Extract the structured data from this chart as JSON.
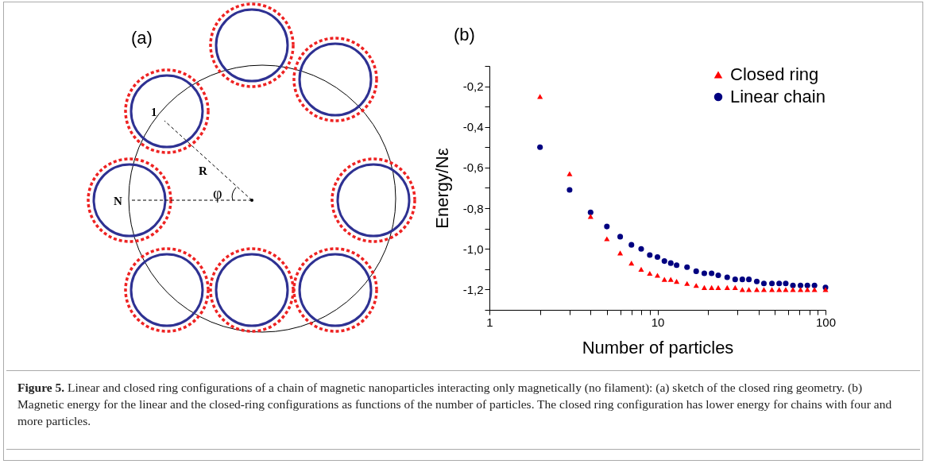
{
  "chart_data": [
    {
      "type": "other",
      "annotations": [
        "(a)",
        "1",
        "R",
        "N",
        "φ"
      ]
    },
    {
      "type": "scatter",
      "title": "(b)",
      "xlabel": "Number of particles",
      "ylabel": "Energy/Nε",
      "log": "x",
      "legend": "top right",
      "grid": false,
      "xlim": [
        1,
        100
      ],
      "xticks": [
        1,
        {
          "value": 2,
          "label": null
        },
        {
          "value": 3,
          "label": null
        },
        {
          "value": 4,
          "label": null
        },
        {
          "value": 5,
          "label": null
        },
        {
          "value": 6,
          "label": null
        },
        {
          "value": 7,
          "label": null
        },
        {
          "value": 8,
          "label": null
        },
        {
          "value": 9,
          "label": null
        },
        10,
        {
          "value": 20,
          "label": null
        },
        {
          "value": 30,
          "label": null
        },
        {
          "value": 40,
          "label": null
        },
        {
          "value": 50,
          "label": null
        },
        {
          "value": 60,
          "label": null
        },
        {
          "value": 70,
          "label": null
        },
        {
          "value": 80,
          "label": null
        },
        {
          "value": 90,
          "label": null
        },
        100
      ],
      "ylim": [
        -1.3,
        -0.1
      ],
      "yticks": [
        {
          "value": -1.3,
          "label": null
        },
        {
          "value": -1.2,
          "label": "-1,2"
        },
        {
          "value": -1.1,
          "label": null
        },
        {
          "value": -1.0,
          "label": "-1,0"
        },
        {
          "value": -0.9,
          "label": null
        },
        {
          "value": -0.8,
          "label": "-0,8"
        },
        {
          "value": -0.7,
          "label": null
        },
        {
          "value": -0.6,
          "label": "-0,6"
        },
        {
          "value": -0.5,
          "label": null
        },
        {
          "value": -0.4,
          "label": "-0,4"
        },
        {
          "value": -0.3,
          "label": null
        },
        {
          "value": -0.2,
          "label": "-0,2"
        },
        {
          "value": -0.1,
          "label": null
        }
      ],
      "x": [
        2,
        3,
        4,
        5,
        6,
        7,
        8,
        9,
        10,
        11,
        12,
        13,
        15,
        17,
        19,
        21,
        23,
        26,
        29,
        32,
        35,
        39,
        43,
        48,
        53,
        58,
        64,
        71,
        78,
        86,
        100
      ],
      "series": [
        {
          "name": "Closed ring",
          "color": "#ff0000",
          "marker": "triangle",
          "values": [
            -0.25,
            -0.63,
            -0.84,
            -0.95,
            -1.02,
            -1.07,
            -1.1,
            -1.12,
            -1.13,
            -1.15,
            -1.15,
            -1.16,
            -1.17,
            -1.18,
            -1.19,
            -1.19,
            -1.19,
            -1.19,
            -1.19,
            -1.2,
            -1.2,
            -1.2,
            -1.2,
            -1.2,
            -1.2,
            -1.2,
            -1.2,
            -1.2,
            -1.2,
            -1.2,
            -1.2
          ]
        },
        {
          "name": "Linear chain",
          "color": "#000080",
          "marker": "circle",
          "values": [
            -0.5,
            -0.71,
            -0.82,
            -0.89,
            -0.94,
            -0.98,
            -1.0,
            -1.03,
            -1.04,
            -1.06,
            -1.07,
            -1.08,
            -1.09,
            -1.11,
            -1.12,
            -1.12,
            -1.13,
            -1.14,
            -1.15,
            -1.15,
            -1.15,
            -1.16,
            -1.17,
            -1.17,
            -1.17,
            -1.17,
            -1.18,
            -1.18,
            -1.18,
            -1.18,
            -1.19
          ]
        }
      ],
      "annotations": [
        "Figure 5.",
        "Linear and closed ring configurations of a chain of magnetic nanoparticles interacting only magnetically (no filament): (a) sketch of the closed ring geometry. (b) Magnetic energy for the linear and the closed-ring configurations as functions of the number of particles. The closed ring configuration has lower energy for chains with four and more particles."
      ]
    }
  ]
}
